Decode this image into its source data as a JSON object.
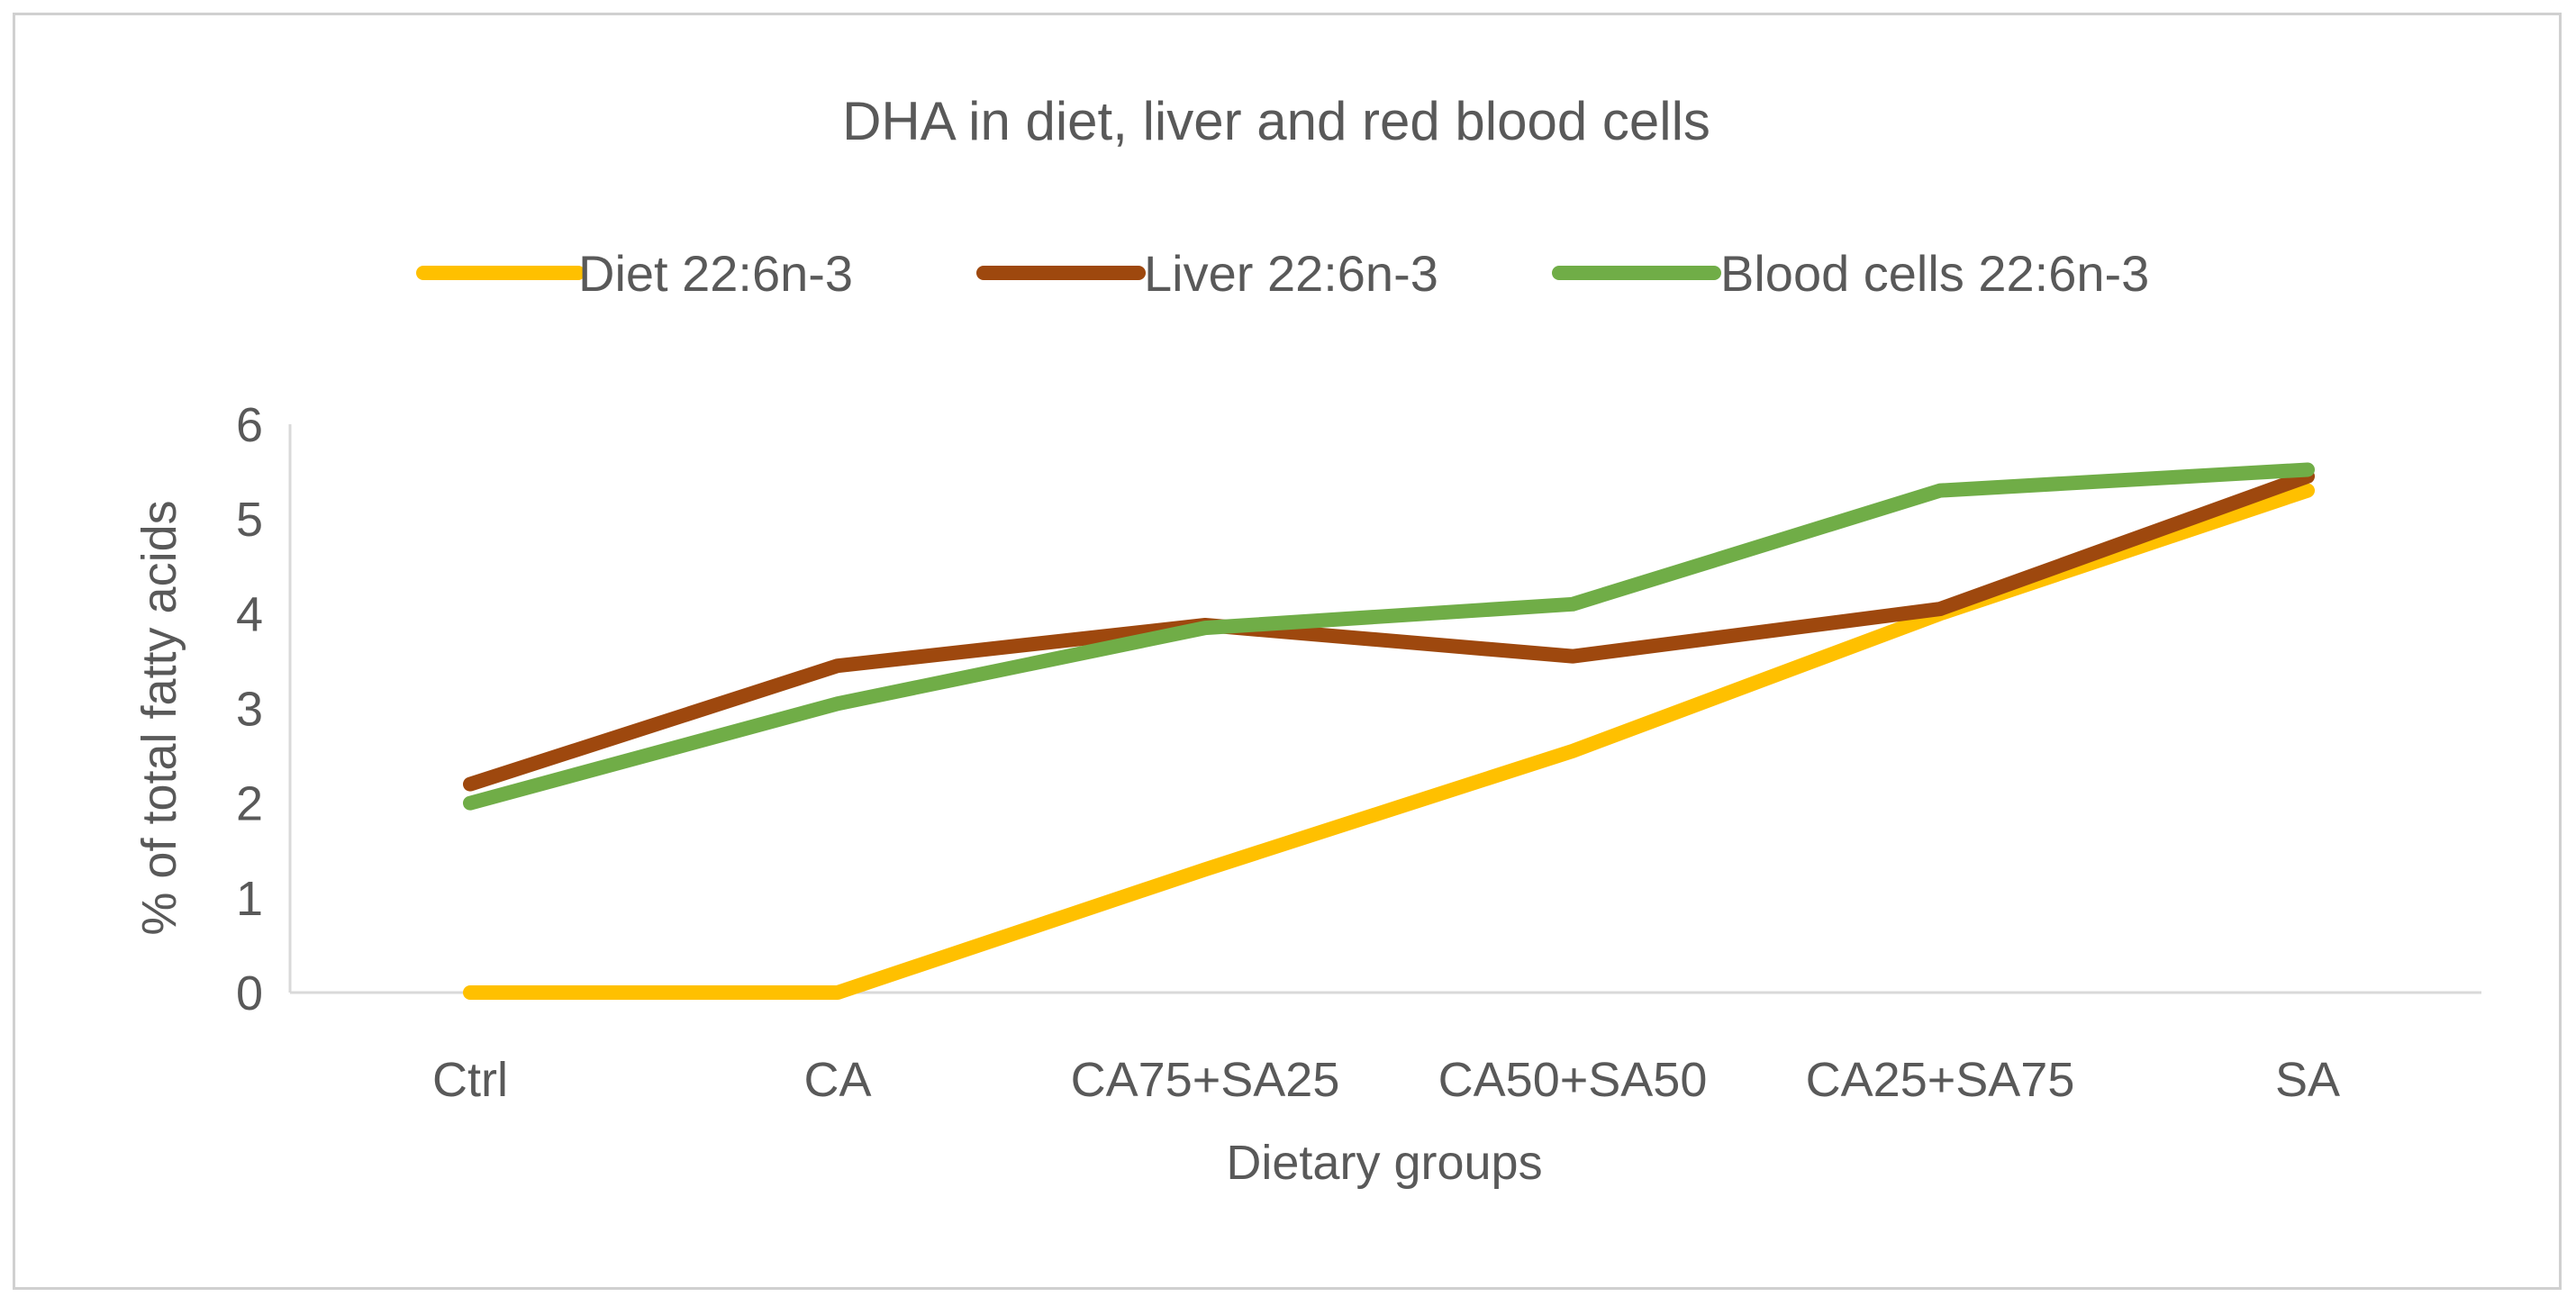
{
  "chart_data": {
    "type": "line",
    "title": "DHA in diet, liver and red blood cells",
    "xlabel": "Dietary groups",
    "ylabel": "% of total fatty acids",
    "categories": [
      "Ctrl",
      "CA",
      "CA75+SA25",
      "CA50+SA50",
      "CA25+SA75",
      "SA"
    ],
    "ylim": [
      0,
      6
    ],
    "yticks": [
      0,
      1,
      2,
      3,
      4,
      5,
      6
    ],
    "legend_position": "top",
    "grid": false,
    "series": [
      {
        "name": "Diet 22:6n-3",
        "color": "#FFC000",
        "values": [
          0,
          0,
          1.3,
          2.55,
          4.0,
          5.3
        ]
      },
      {
        "name": "Liver 22:6n-3",
        "color": "#9E480E",
        "values": [
          2.2,
          3.45,
          3.88,
          3.55,
          4.05,
          5.45
        ]
      },
      {
        "name": "Blood cells 22:6n-3",
        "color": "#70AD47",
        "values": [
          2.0,
          3.05,
          3.85,
          4.1,
          5.3,
          5.52
        ]
      }
    ]
  }
}
